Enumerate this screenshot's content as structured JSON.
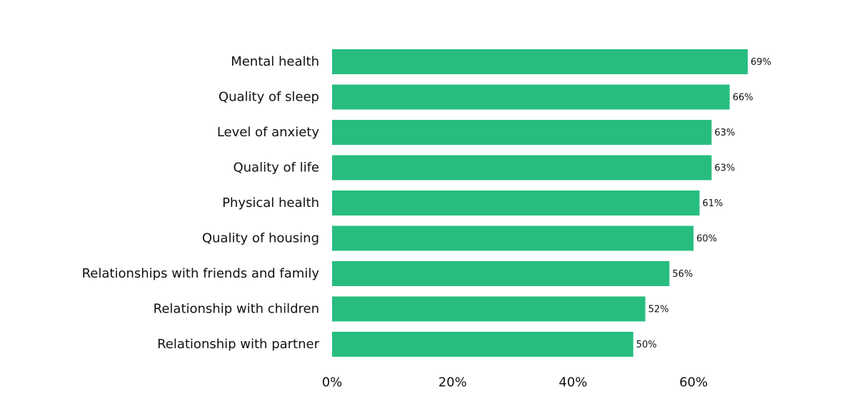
{
  "chart_data": {
    "type": "bar",
    "orientation": "horizontal",
    "categories": [
      "Mental health",
      "Quality of sleep",
      "Level of anxiety",
      "Quality of life",
      "Physical health",
      "Quality of housing",
      "Relationships with friends and family",
      "Relationship with children",
      "Relationship with partner"
    ],
    "values": [
      69,
      66,
      63,
      63,
      61,
      60,
      56,
      52,
      50
    ],
    "value_labels": [
      "69%",
      "66%",
      "63%",
      "63%",
      "61%",
      "60%",
      "56%",
      "52%",
      "50%"
    ],
    "x_ticks": [
      0,
      20,
      40,
      60
    ],
    "x_tick_labels": [
      "0%",
      "20%",
      "40%",
      "60%"
    ],
    "xlim": [
      0,
      69
    ],
    "title": "",
    "xlabel": "",
    "ylabel": "",
    "grid": false,
    "legend": "none",
    "colors": {
      "bar": "#27bd7f",
      "text": "#111111",
      "background": "#ffffff"
    }
  }
}
